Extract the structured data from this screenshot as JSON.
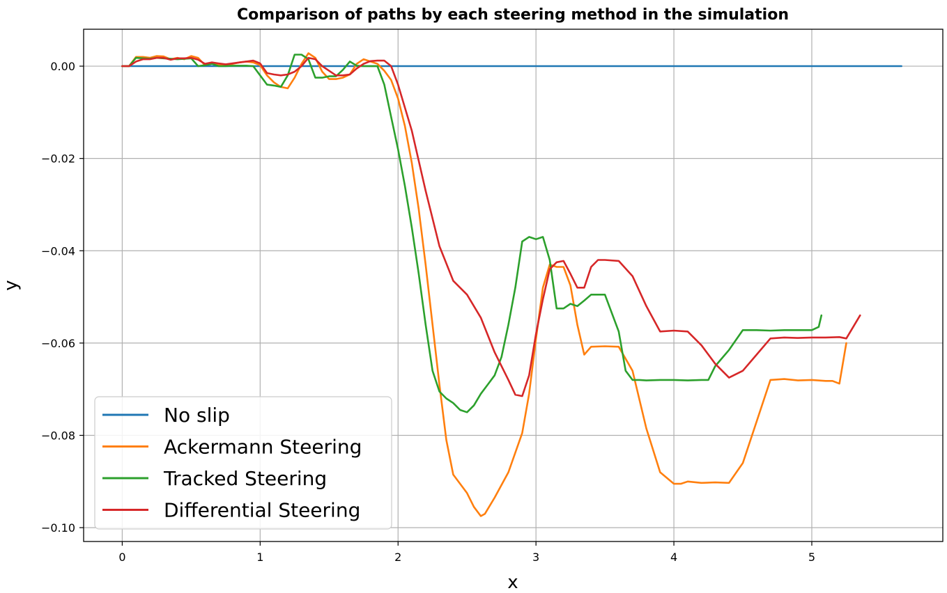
{
  "chart_data": {
    "type": "line",
    "title": "Comparison of paths by each steering method in the simulation",
    "xlabel": "x",
    "ylabel": "y",
    "xlim": [
      -0.28,
      5.95
    ],
    "ylim": [
      -0.103,
      0.008
    ],
    "xticks": [
      0,
      1,
      2,
      3,
      4,
      5
    ],
    "yticks": [
      0.0,
      -0.02,
      -0.04,
      -0.06,
      -0.08,
      -0.1
    ],
    "xtick_labels": [
      "0",
      "1",
      "2",
      "3",
      "4",
      "5"
    ],
    "ytick_labels": [
      "0.00",
      "−0.02",
      "−0.04",
      "−0.06",
      "−0.08",
      "−0.10"
    ],
    "grid": true,
    "legend_position": "lower-left",
    "series": [
      {
        "name": "No slip",
        "color": "#1f77b4",
        "x": [
          0,
          5.65
        ],
        "y": [
          0.0,
          0.0
        ]
      },
      {
        "name": "Ackermann Steering",
        "color": "#ff7f0e",
        "x": [
          0,
          0.05,
          0.1,
          0.15,
          0.2,
          0.25,
          0.3,
          0.35,
          0.4,
          0.45,
          0.5,
          0.55,
          0.6,
          0.65,
          0.7,
          0.75,
          0.8,
          0.85,
          0.9,
          0.95,
          1.0,
          1.05,
          1.1,
          1.15,
          1.2,
          1.25,
          1.3,
          1.35,
          1.4,
          1.45,
          1.5,
          1.55,
          1.6,
          1.65,
          1.7,
          1.75,
          1.8,
          1.85,
          1.9,
          1.95,
          2.0,
          2.05,
          2.1,
          2.15,
          2.2,
          2.25,
          2.3,
          2.35,
          2.4,
          2.45,
          2.5,
          2.55,
          2.6,
          2.63,
          2.7,
          2.8,
          2.9,
          2.95,
          3.0,
          3.05,
          3.1,
          3.15,
          3.2,
          3.25,
          3.3,
          3.35,
          3.4,
          3.5,
          3.6,
          3.7,
          3.8,
          3.9,
          4.0,
          4.05,
          4.1,
          4.2,
          4.3,
          4.4,
          4.5,
          4.6,
          4.7,
          4.8,
          4.9,
          5.0,
          5.1,
          5.15,
          5.2,
          5.25
        ],
        "y": [
          0.0,
          0.0,
          0.002,
          0.002,
          0.0018,
          0.0022,
          0.0021,
          0.0015,
          0.0018,
          0.0015,
          0.0022,
          0.0018,
          0.0002,
          0.0008,
          0.0002,
          0.0002,
          0.0005,
          0.0008,
          0.001,
          0.0008,
          0.0002,
          -0.002,
          -0.0035,
          -0.0045,
          -0.0048,
          -0.0025,
          0.0005,
          0.0028,
          0.0018,
          -0.0012,
          -0.0028,
          -0.0028,
          -0.0025,
          -0.0018,
          0.0005,
          0.0015,
          0.001,
          0.0005,
          -0.001,
          -0.003,
          -0.007,
          -0.013,
          -0.021,
          -0.031,
          -0.043,
          -0.056,
          -0.069,
          -0.081,
          -0.0885,
          -0.0905,
          -0.0925,
          -0.0955,
          -0.0975,
          -0.097,
          -0.0935,
          -0.088,
          -0.0795,
          -0.071,
          -0.059,
          -0.048,
          -0.043,
          -0.0435,
          -0.0435,
          -0.0475,
          -0.056,
          -0.0625,
          -0.0608,
          -0.0607,
          -0.0608,
          -0.066,
          -0.0785,
          -0.088,
          -0.0905,
          -0.0905,
          -0.09,
          -0.0903,
          -0.0902,
          -0.0903,
          -0.086,
          -0.077,
          -0.068,
          -0.0678,
          -0.0681,
          -0.068,
          -0.0682,
          -0.0682,
          -0.0688,
          -0.06
        ]
      },
      {
        "name": "Tracked Steering",
        "color": "#2ca02c",
        "x": [
          0,
          0.05,
          0.1,
          0.15,
          0.2,
          0.25,
          0.3,
          0.35,
          0.4,
          0.45,
          0.5,
          0.55,
          0.6,
          0.65,
          0.7,
          0.75,
          0.8,
          0.85,
          0.9,
          0.95,
          1.0,
          1.05,
          1.1,
          1.15,
          1.2,
          1.25,
          1.3,
          1.35,
          1.4,
          1.45,
          1.5,
          1.55,
          1.6,
          1.65,
          1.7,
          1.75,
          1.8,
          1.85,
          1.9,
          1.95,
          2.0,
          2.05,
          2.1,
          2.15,
          2.2,
          2.25,
          2.3,
          2.35,
          2.4,
          2.45,
          2.5,
          2.55,
          2.6,
          2.65,
          2.7,
          2.75,
          2.8,
          2.85,
          2.9,
          2.95,
          3.0,
          3.05,
          3.1,
          3.15,
          3.2,
          3.25,
          3.3,
          3.35,
          3.4,
          3.5,
          3.6,
          3.65,
          3.7,
          3.75,
          3.8,
          3.9,
          4.0,
          4.1,
          4.2,
          4.25,
          4.3,
          4.4,
          4.5,
          4.6,
          4.7,
          4.8,
          4.9,
          5.0,
          5.05,
          5.07
        ],
        "y": [
          0.0,
          0.0,
          0.0018,
          0.0017,
          0.0016,
          0.0018,
          0.0017,
          0.0016,
          0.0015,
          0.0016,
          0.0017,
          0.0,
          0.0002,
          0.0005,
          0.0,
          0.0,
          0.0001,
          0.0001,
          0.0001,
          0.0,
          -0.002,
          -0.004,
          -0.0042,
          -0.0045,
          -0.002,
          0.0025,
          0.0025,
          0.0015,
          -0.0025,
          -0.0025,
          -0.0022,
          -0.0022,
          -0.0008,
          0.001,
          0.0001,
          0.0,
          0.0,
          0.0,
          -0.004,
          -0.011,
          -0.018,
          -0.026,
          -0.035,
          -0.045,
          -0.056,
          -0.066,
          -0.0705,
          -0.072,
          -0.073,
          -0.0745,
          -0.075,
          -0.0735,
          -0.071,
          -0.069,
          -0.067,
          -0.063,
          -0.056,
          -0.048,
          -0.038,
          -0.037,
          -0.0375,
          -0.037,
          -0.042,
          -0.0525,
          -0.0525,
          -0.0515,
          -0.052,
          -0.0508,
          -0.0495,
          -0.0495,
          -0.0575,
          -0.066,
          -0.068,
          -0.068,
          -0.0681,
          -0.068,
          -0.068,
          -0.0681,
          -0.068,
          -0.068,
          -0.065,
          -0.0615,
          -0.0572,
          -0.0572,
          -0.0573,
          -0.0572,
          -0.0572,
          -0.0572,
          -0.0565,
          -0.054
        ]
      },
      {
        "name": "Differential Steering",
        "color": "#d62728",
        "x": [
          0,
          0.05,
          0.1,
          0.15,
          0.2,
          0.25,
          0.3,
          0.35,
          0.4,
          0.45,
          0.5,
          0.55,
          0.6,
          0.65,
          0.7,
          0.75,
          0.8,
          0.85,
          0.9,
          0.95,
          1.0,
          1.05,
          1.1,
          1.15,
          1.2,
          1.25,
          1.3,
          1.35,
          1.4,
          1.45,
          1.5,
          1.55,
          1.6,
          1.65,
          1.7,
          1.75,
          1.8,
          1.85,
          1.9,
          1.95,
          2.0,
          2.1,
          2.2,
          2.3,
          2.4,
          2.5,
          2.6,
          2.7,
          2.8,
          2.85,
          2.9,
          2.95,
          3.0,
          3.05,
          3.1,
          3.15,
          3.2,
          3.25,
          3.3,
          3.35,
          3.4,
          3.45,
          3.5,
          3.6,
          3.7,
          3.8,
          3.9,
          4.0,
          4.1,
          4.2,
          4.3,
          4.4,
          4.5,
          4.6,
          4.7,
          4.8,
          4.9,
          5.0,
          5.1,
          5.2,
          5.25,
          5.3,
          5.35
        ],
        "y": [
          0.0,
          0.0,
          0.001,
          0.0015,
          0.0015,
          0.0018,
          0.0018,
          0.0014,
          0.0017,
          0.0017,
          0.0018,
          0.0014,
          0.0005,
          0.0008,
          0.0006,
          0.0004,
          0.0006,
          0.0008,
          0.001,
          0.0012,
          0.0006,
          -0.0015,
          -0.0018,
          -0.002,
          -0.0018,
          -0.0012,
          0.0,
          0.0018,
          0.0015,
          0.0,
          -0.001,
          -0.002,
          -0.002,
          -0.0018,
          -0.0005,
          0.0005,
          0.0011,
          0.0012,
          0.0012,
          0.0,
          -0.004,
          -0.014,
          -0.027,
          -0.039,
          -0.0465,
          -0.0495,
          -0.0545,
          -0.062,
          -0.068,
          -0.0712,
          -0.0715,
          -0.067,
          -0.058,
          -0.0505,
          -0.044,
          -0.0425,
          -0.0422,
          -0.045,
          -0.048,
          -0.048,
          -0.0435,
          -0.042,
          -0.042,
          -0.0422,
          -0.0455,
          -0.052,
          -0.0575,
          -0.0573,
          -0.0575,
          -0.0605,
          -0.0645,
          -0.0675,
          -0.066,
          -0.0625,
          -0.059,
          -0.0588,
          -0.0589,
          -0.0588,
          -0.0588,
          -0.0587,
          -0.059,
          -0.0565,
          -0.054
        ]
      }
    ]
  }
}
